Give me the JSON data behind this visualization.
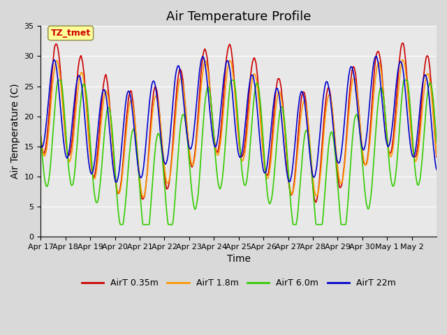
{
  "title": "Air Temperature Profile",
  "xlabel": "Time",
  "ylabel": "Air Temperature (C)",
  "ylim": [
    0,
    35
  ],
  "n_days": 16,
  "x_tick_labels": [
    "Apr 17",
    "Apr 18",
    "Apr 19",
    "Apr 20",
    "Apr 21",
    "Apr 22",
    "Apr 23",
    "Apr 24",
    "Apr 25",
    "Apr 26",
    "Apr 27",
    "Apr 28",
    "Apr 29",
    "Apr 30",
    "May 1",
    "May 2"
  ],
  "annotation_text": "TZ_tmet",
  "annotation_color": "#cc0000",
  "annotation_bg": "#ffff99",
  "annotation_border": "#999955",
  "series_colors": [
    "#cc0000",
    "#ff9900",
    "#33cc00",
    "#0000cc"
  ],
  "series_labels": [
    "AirT 0.35m",
    "AirT 1.8m",
    "AirT 6.0m",
    "AirT 22m"
  ],
  "fig_bg_color": "#d9d9d9",
  "plot_bg_color": "#e8e8e8",
  "grid_color": "#ffffff",
  "title_fontsize": 13,
  "label_fontsize": 10,
  "tick_fontsize": 8,
  "yticks": [
    0,
    5,
    10,
    15,
    20,
    25,
    30,
    35
  ]
}
